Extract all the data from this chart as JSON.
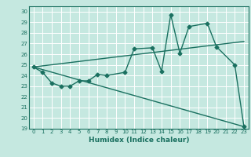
{
  "xlabel": "Humidex (Indice chaleur)",
  "background_color": "#c5e8e0",
  "grid_color": "#ffffff",
  "line_color": "#1a7060",
  "xlim": [
    -0.5,
    23.5
  ],
  "ylim": [
    19,
    30.5
  ],
  "yticks": [
    19,
    20,
    21,
    22,
    23,
    24,
    25,
    26,
    27,
    28,
    29,
    30
  ],
  "xticks": [
    0,
    1,
    2,
    3,
    4,
    5,
    6,
    7,
    8,
    9,
    10,
    11,
    12,
    13,
    14,
    15,
    16,
    17,
    18,
    19,
    20,
    21,
    22,
    23
  ],
  "series1_x": [
    0,
    1,
    2,
    3,
    4,
    5,
    6,
    7,
    8,
    10,
    11,
    13,
    14,
    15,
    16,
    17,
    19,
    20,
    22,
    23
  ],
  "series1_y": [
    24.8,
    24.3,
    23.3,
    23.0,
    23.0,
    23.5,
    23.5,
    24.1,
    24.0,
    24.3,
    26.5,
    26.6,
    24.4,
    29.7,
    26.1,
    28.6,
    28.9,
    26.7,
    25.0,
    19.2
  ],
  "series2_x": [
    0,
    23
  ],
  "series2_y": [
    24.8,
    19.2
  ],
  "series3_x": [
    0,
    23
  ],
  "series3_y": [
    24.8,
    27.2
  ],
  "marker": "D",
  "markersize": 2.5,
  "linewidth": 1.0,
  "tick_fontsize": 5.0,
  "xlabel_fontsize": 6.5
}
